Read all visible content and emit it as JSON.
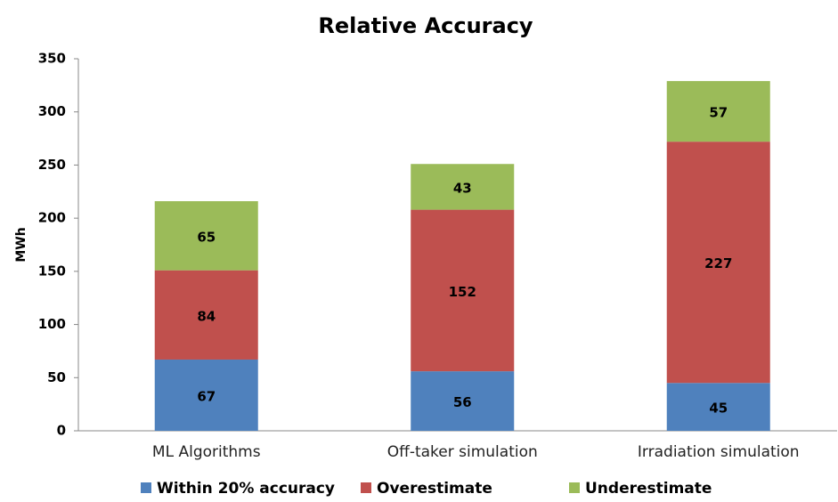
{
  "chart_data": {
    "type": "bar",
    "stacked": true,
    "title": "Relative Accuracy",
    "y_label": "MWh",
    "categories": [
      "ML Algorithms",
      "Off-taker simulation",
      "Irradiation simulation"
    ],
    "series": [
      {
        "name": "Within 20% accuracy",
        "color": "#4f81bd",
        "values": [
          67,
          56,
          45
        ]
      },
      {
        "name": "Overestimate",
        "color": "#c0504d",
        "values": [
          84,
          152,
          227
        ]
      },
      {
        "name": "Underestimate",
        "color": "#9bbb59",
        "values": [
          65,
          43,
          57
        ]
      }
    ],
    "ylim": [
      0,
      350
    ],
    "yticks": [
      0,
      50,
      100,
      150,
      200,
      250,
      300,
      350
    ],
    "grid": false
  }
}
